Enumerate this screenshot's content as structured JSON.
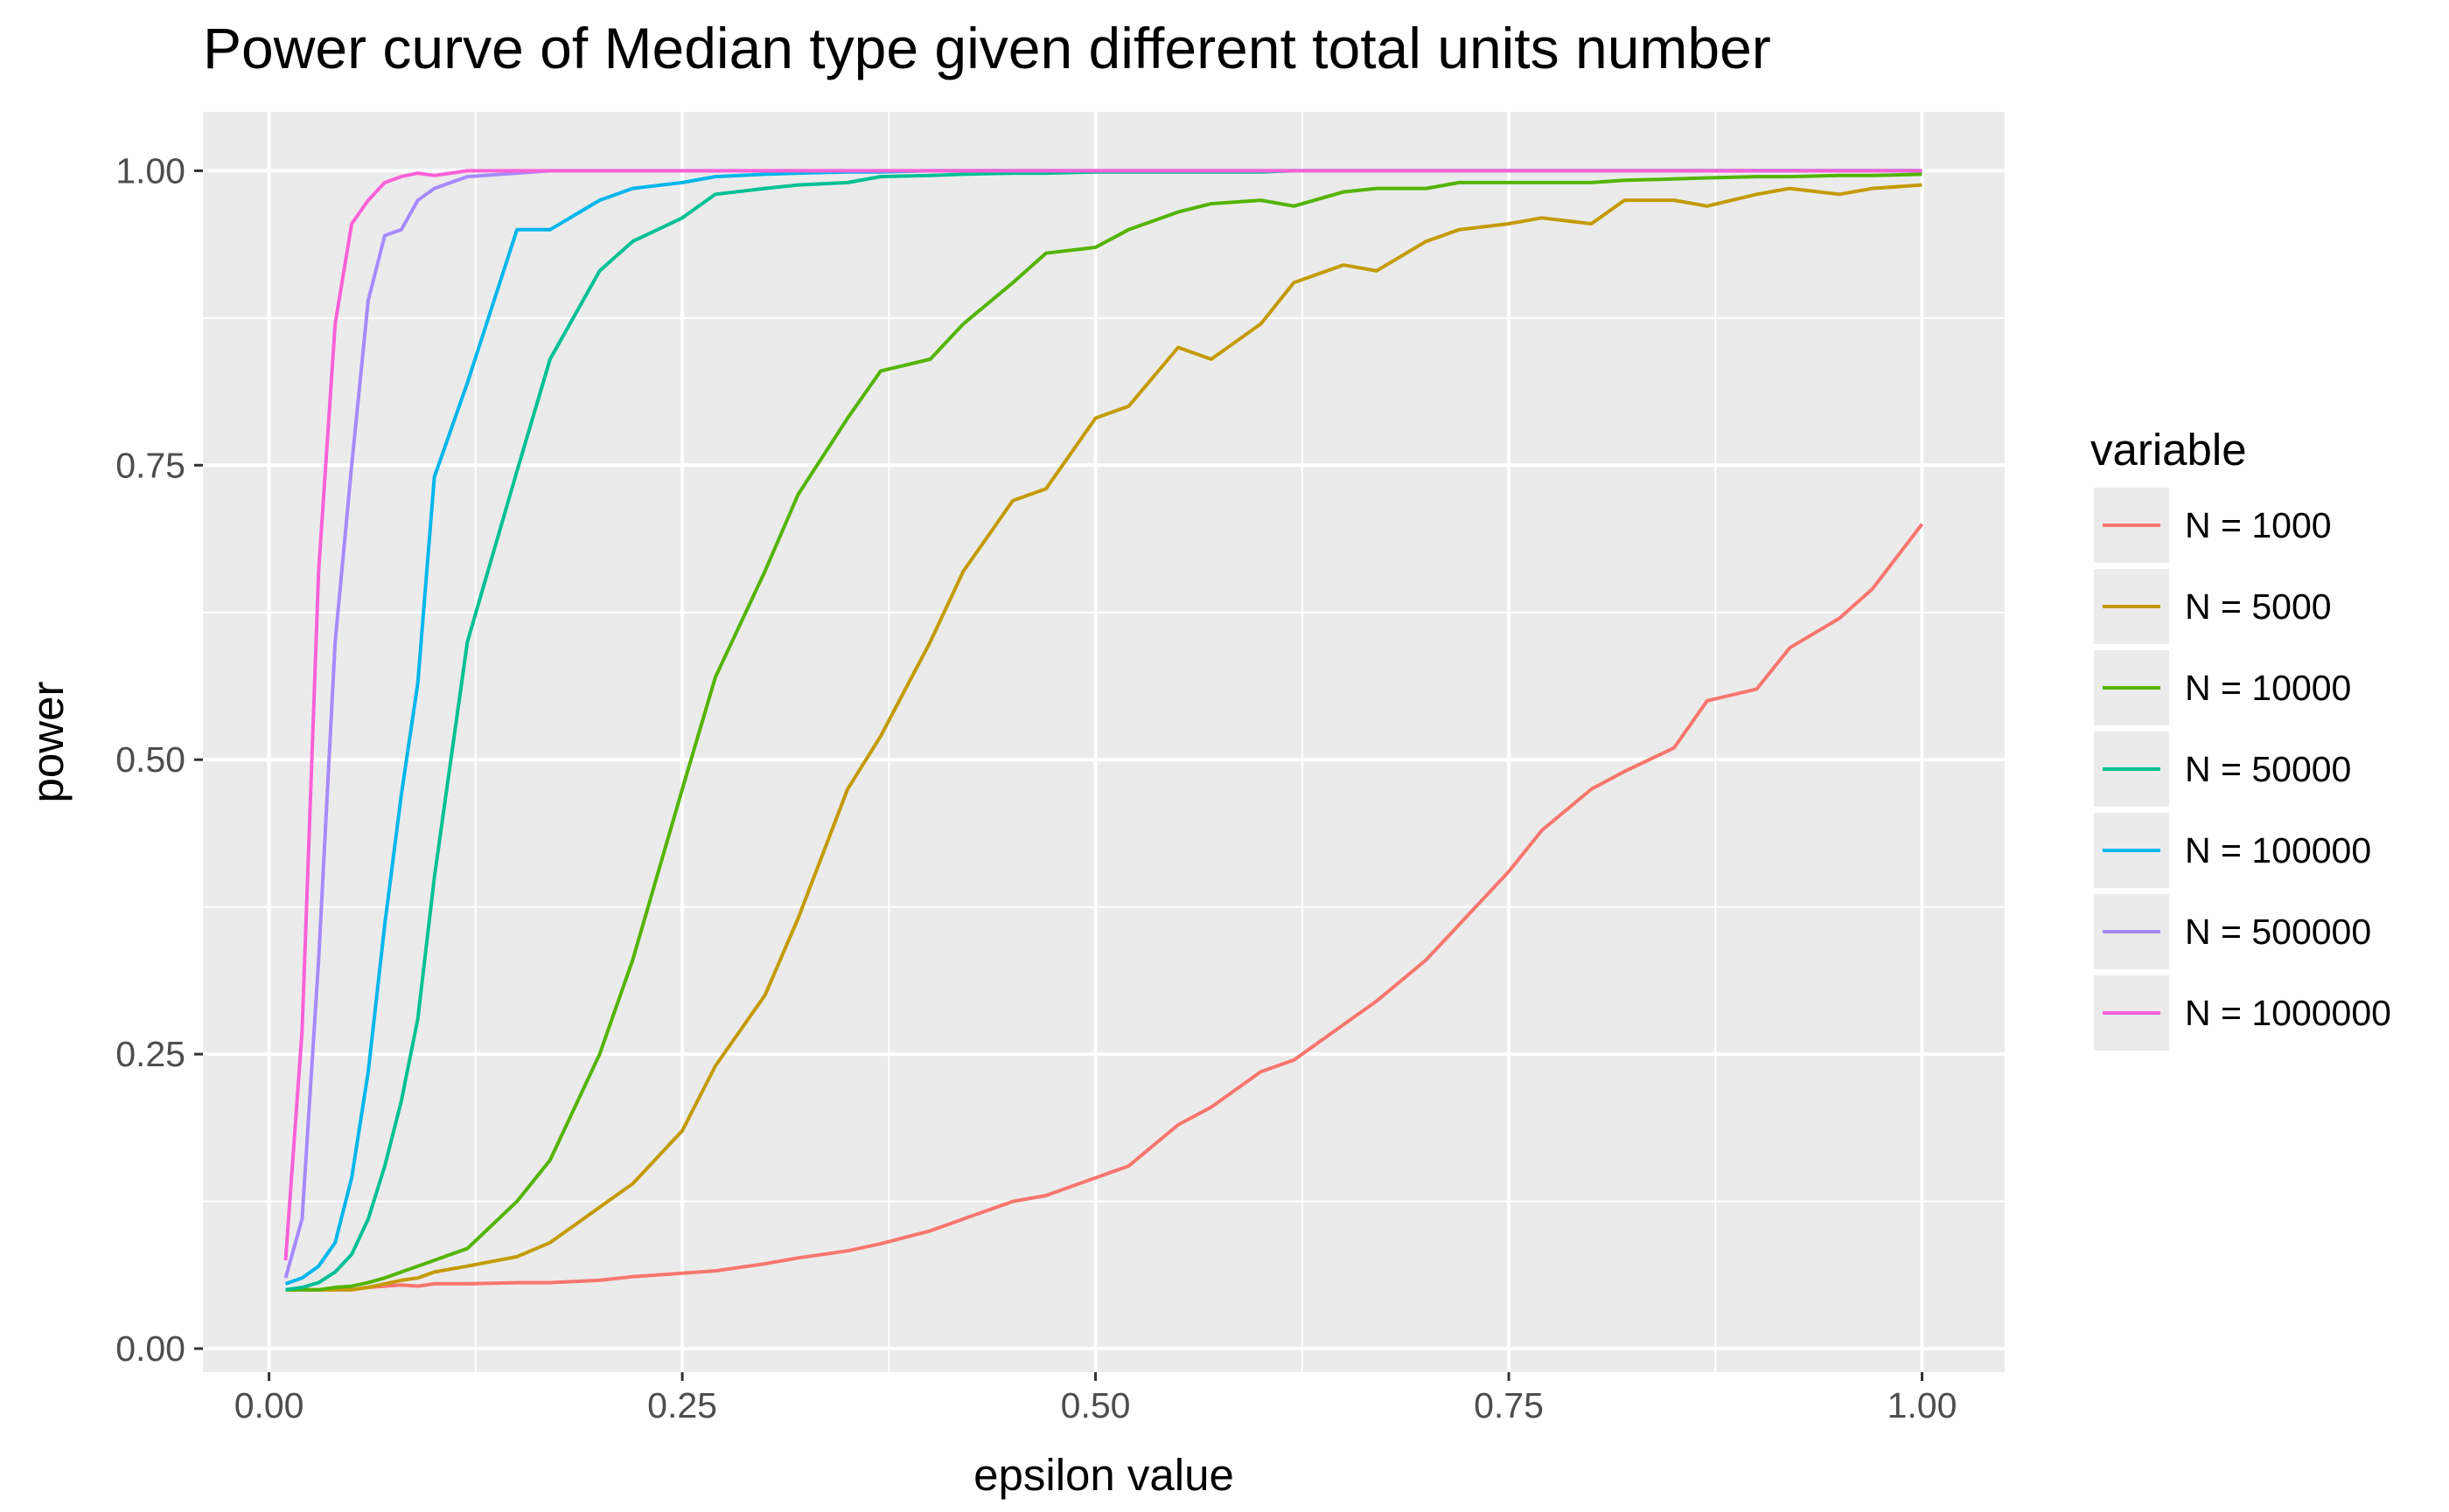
{
  "chart_data": {
    "type": "line",
    "title": "Power curve of Median type given different total units number",
    "xlabel": "epsilon value",
    "ylabel": "power",
    "xlim": [
      -0.04,
      1.05
    ],
    "ylim": [
      -0.02,
      1.05
    ],
    "x_ticks": [
      "0.00",
      "0.25",
      "0.50",
      "0.75",
      "1.00"
    ],
    "y_ticks": [
      "0.00",
      "0.25",
      "0.50",
      "0.75",
      "1.00"
    ],
    "grid": true,
    "legend_title": "variable",
    "legend_position": "right",
    "x": [
      0.01,
      0.02,
      0.03,
      0.04,
      0.05,
      0.06,
      0.07,
      0.08,
      0.09,
      0.1,
      0.12,
      0.15,
      0.17,
      0.2,
      0.22,
      0.25,
      0.27,
      0.3,
      0.32,
      0.35,
      0.37,
      0.4,
      0.42,
      0.45,
      0.47,
      0.5,
      0.52,
      0.55,
      0.57,
      0.6,
      0.62,
      0.65,
      0.67,
      0.7,
      0.72,
      0.75,
      0.77,
      0.8,
      0.82,
      0.85,
      0.87,
      0.9,
      0.92,
      0.95,
      0.97,
      1.0
    ],
    "series": [
      {
        "name": "N = 1000",
        "color": "#F8766D",
        "values": [
          0.05,
          0.05,
          0.05,
          0.05,
          0.05,
          0.052,
          0.053,
          0.054,
          0.053,
          0.055,
          0.055,
          0.056,
          0.056,
          0.058,
          0.061,
          0.064,
          0.066,
          0.072,
          0.077,
          0.083,
          0.089,
          0.1,
          0.11,
          0.125,
          0.13,
          0.145,
          0.155,
          0.19,
          0.205,
          0.235,
          0.245,
          0.275,
          0.295,
          0.33,
          0.36,
          0.405,
          0.44,
          0.475,
          0.49,
          0.51,
          0.55,
          0.56,
          0.595,
          0.62,
          0.645,
          0.7
        ]
      },
      {
        "name": "N = 5000",
        "color": "#C49A00",
        "values": [
          0.05,
          0.05,
          0.05,
          0.05,
          0.05,
          0.052,
          0.055,
          0.058,
          0.06,
          0.065,
          0.07,
          0.078,
          0.09,
          0.12,
          0.14,
          0.185,
          0.24,
          0.3,
          0.365,
          0.475,
          0.52,
          0.6,
          0.66,
          0.72,
          0.73,
          0.79,
          0.8,
          0.85,
          0.84,
          0.87,
          0.905,
          0.92,
          0.915,
          0.94,
          0.95,
          0.955,
          0.96,
          0.955,
          0.975,
          0.975,
          0.97,
          0.98,
          0.985,
          0.98,
          0.985,
          0.988
        ]
      },
      {
        "name": "N = 10000",
        "color": "#53B400",
        "values": [
          0.05,
          0.05,
          0.05,
          0.052,
          0.053,
          0.056,
          0.06,
          0.065,
          0.07,
          0.075,
          0.085,
          0.125,
          0.16,
          0.25,
          0.33,
          0.475,
          0.57,
          0.66,
          0.725,
          0.79,
          0.83,
          0.84,
          0.87,
          0.905,
          0.93,
          0.935,
          0.95,
          0.965,
          0.972,
          0.975,
          0.97,
          0.982,
          0.985,
          0.985,
          0.99,
          0.99,
          0.99,
          0.99,
          0.992,
          0.993,
          0.994,
          0.995,
          0.995,
          0.996,
          0.996,
          0.997
        ]
      },
      {
        "name": "N = 50000",
        "color": "#00C094",
        "values": [
          0.05,
          0.052,
          0.056,
          0.065,
          0.08,
          0.11,
          0.155,
          0.21,
          0.28,
          0.4,
          0.6,
          0.745,
          0.84,
          0.915,
          0.94,
          0.96,
          0.98,
          0.985,
          0.988,
          0.99,
          0.995,
          0.996,
          0.997,
          0.998,
          0.998,
          0.999,
          0.999,
          0.999,
          0.999,
          0.999,
          1.0,
          1.0,
          1.0,
          1.0,
          1.0,
          1.0,
          1.0,
          1.0,
          1.0,
          1.0,
          1.0,
          1.0,
          1.0,
          1.0,
          1.0,
          1.0
        ]
      },
      {
        "name": "N = 100000",
        "color": "#00B6EB",
        "values": [
          0.055,
          0.06,
          0.07,
          0.09,
          0.145,
          0.235,
          0.36,
          0.47,
          0.565,
          0.74,
          0.82,
          0.95,
          0.95,
          0.975,
          0.985,
          0.99,
          0.995,
          0.997,
          0.998,
          0.999,
          0.999,
          1.0,
          1.0,
          1.0,
          1.0,
          1.0,
          1.0,
          1.0,
          1.0,
          1.0,
          1.0,
          1.0,
          1.0,
          1.0,
          1.0,
          1.0,
          1.0,
          1.0,
          1.0,
          1.0,
          1.0,
          1.0,
          1.0,
          1.0,
          1.0,
          1.0
        ]
      },
      {
        "name": "N = 500000",
        "color": "#A58AFF",
        "values": [
          0.06,
          0.11,
          0.33,
          0.6,
          0.75,
          0.89,
          0.945,
          0.95,
          0.975,
          0.985,
          0.995,
          0.998,
          1.0,
          1.0,
          1.0,
          1.0,
          1.0,
          1.0,
          1.0,
          1.0,
          1.0,
          1.0,
          1.0,
          1.0,
          1.0,
          1.0,
          1.0,
          1.0,
          1.0,
          1.0,
          1.0,
          1.0,
          1.0,
          1.0,
          1.0,
          1.0,
          1.0,
          1.0,
          1.0,
          1.0,
          1.0,
          1.0,
          1.0,
          1.0,
          1.0,
          1.0
        ]
      },
      {
        "name": "N = 1000000",
        "color": "#FB61D7",
        "values": [
          0.075,
          0.27,
          0.66,
          0.87,
          0.955,
          0.975,
          0.99,
          0.995,
          0.998,
          0.996,
          1.0,
          1.0,
          1.0,
          1.0,
          1.0,
          1.0,
          1.0,
          1.0,
          1.0,
          1.0,
          1.0,
          1.0,
          1.0,
          1.0,
          1.0,
          1.0,
          1.0,
          1.0,
          1.0,
          1.0,
          1.0,
          1.0,
          1.0,
          1.0,
          1.0,
          1.0,
          1.0,
          1.0,
          1.0,
          1.0,
          1.0,
          1.0,
          1.0,
          1.0,
          1.0,
          1.0
        ]
      }
    ]
  }
}
